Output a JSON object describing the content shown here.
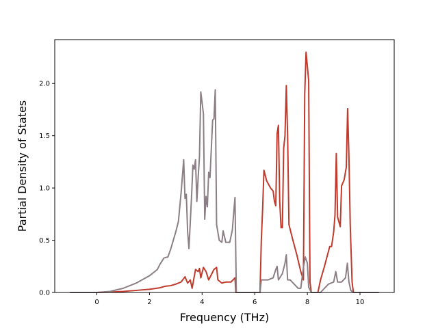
{
  "chart_data": {
    "type": "line",
    "title": "",
    "xlabel": "Frequency (THz)",
    "ylabel": "Partial Density of States",
    "xlim": [
      -1.6,
      11.3
    ],
    "ylim": [
      0.0,
      2.42
    ],
    "xticks": [
      0,
      2,
      4,
      6,
      8,
      10
    ],
    "yticks": [
      0.0,
      0.5,
      1.0,
      1.5,
      2.0
    ],
    "xtick_labels": [
      "0",
      "2",
      "4",
      "6",
      "8",
      "10"
    ],
    "ytick_labels": [
      "0.0",
      "0.5",
      "1.0",
      "1.5",
      "2.0"
    ],
    "grid": false,
    "legend": "none",
    "series": [
      {
        "color": "#c0392b",
        "points": [
          [
            -1.0,
            0.0
          ],
          [
            0.0,
            0.0
          ],
          [
            0.5,
            0.003
          ],
          [
            1.0,
            0.01
          ],
          [
            1.5,
            0.02
          ],
          [
            2.0,
            0.03
          ],
          [
            2.4,
            0.045
          ],
          [
            2.6,
            0.06
          ],
          [
            2.8,
            0.065
          ],
          [
            3.0,
            0.08
          ],
          [
            3.2,
            0.1
          ],
          [
            3.35,
            0.15
          ],
          [
            3.45,
            0.09
          ],
          [
            3.55,
            0.12
          ],
          [
            3.62,
            0.04
          ],
          [
            3.75,
            0.22
          ],
          [
            3.85,
            0.2
          ],
          [
            3.9,
            0.23
          ],
          [
            3.95,
            0.14
          ],
          [
            4.05,
            0.24
          ],
          [
            4.15,
            0.2
          ],
          [
            4.25,
            0.12
          ],
          [
            4.35,
            0.17
          ],
          [
            4.45,
            0.22
          ],
          [
            4.55,
            0.24
          ],
          [
            4.6,
            0.12
          ],
          [
            4.75,
            0.09
          ],
          [
            4.9,
            0.1
          ],
          [
            5.1,
            0.1
          ],
          [
            5.25,
            0.14
          ],
          [
            5.28,
            0.0
          ],
          [
            6.2,
            0.0
          ],
          [
            6.25,
            0.5
          ],
          [
            6.3,
            0.8
          ],
          [
            6.35,
            1.17
          ],
          [
            6.45,
            1.07
          ],
          [
            6.6,
            1.0
          ],
          [
            6.7,
            0.97
          ],
          [
            6.75,
            0.87
          ],
          [
            6.8,
            0.83
          ],
          [
            6.85,
            1.52
          ],
          [
            6.9,
            1.6
          ],
          [
            6.95,
            0.87
          ],
          [
            7.0,
            0.62
          ],
          [
            7.05,
            0.62
          ],
          [
            7.1,
            1.38
          ],
          [
            7.15,
            1.5
          ],
          [
            7.2,
            1.98
          ],
          [
            7.25,
            1.5
          ],
          [
            7.3,
            0.65
          ],
          [
            7.45,
            0.5
          ],
          [
            7.6,
            0.36
          ],
          [
            7.75,
            0.2
          ],
          [
            7.85,
            0.12
          ],
          [
            7.9,
            1.9
          ],
          [
            7.95,
            2.3
          ],
          [
            8.05,
            2.03
          ],
          [
            8.1,
            0.1
          ],
          [
            8.15,
            0.0
          ],
          [
            8.4,
            0.0
          ],
          [
            8.5,
            0.12
          ],
          [
            8.65,
            0.25
          ],
          [
            8.85,
            0.44
          ],
          [
            8.92,
            0.44
          ],
          [
            9.0,
            0.58
          ],
          [
            9.05,
            0.74
          ],
          [
            9.1,
            1.33
          ],
          [
            9.15,
            0.72
          ],
          [
            9.25,
            0.63
          ],
          [
            9.3,
            1.02
          ],
          [
            9.4,
            1.08
          ],
          [
            9.48,
            1.2
          ],
          [
            9.53,
            1.76
          ],
          [
            9.58,
            1.3
          ],
          [
            9.63,
            0.64
          ],
          [
            9.7,
            0.1
          ],
          [
            9.75,
            0.0
          ],
          [
            10.7,
            0.0
          ]
        ]
      },
      {
        "color": "#8c7e85",
        "points": [
          [
            -1.0,
            0.0
          ],
          [
            0.0,
            0.0
          ],
          [
            0.5,
            0.01
          ],
          [
            1.0,
            0.04
          ],
          [
            1.5,
            0.09
          ],
          [
            2.0,
            0.16
          ],
          [
            2.3,
            0.22
          ],
          [
            2.4,
            0.27
          ],
          [
            2.55,
            0.33
          ],
          [
            2.7,
            0.34
          ],
          [
            2.8,
            0.41
          ],
          [
            3.0,
            0.58
          ],
          [
            3.1,
            0.68
          ],
          [
            3.2,
            0.95
          ],
          [
            3.3,
            1.27
          ],
          [
            3.35,
            0.9
          ],
          [
            3.4,
            0.94
          ],
          [
            3.45,
            0.58
          ],
          [
            3.5,
            0.42
          ],
          [
            3.6,
            0.92
          ],
          [
            3.65,
            1.22
          ],
          [
            3.7,
            1.18
          ],
          [
            3.75,
            1.27
          ],
          [
            3.8,
            0.87
          ],
          [
            3.85,
            1.1
          ],
          [
            3.9,
            1.3
          ],
          [
            3.95,
            1.92
          ],
          [
            4.05,
            1.71
          ],
          [
            4.1,
            0.7
          ],
          [
            4.15,
            0.92
          ],
          [
            4.2,
            0.82
          ],
          [
            4.25,
            1.15
          ],
          [
            4.3,
            1.1
          ],
          [
            4.4,
            1.65
          ],
          [
            4.45,
            1.66
          ],
          [
            4.5,
            1.94
          ],
          [
            4.55,
            0.65
          ],
          [
            4.65,
            0.5
          ],
          [
            4.75,
            0.48
          ],
          [
            4.8,
            0.59
          ],
          [
            4.9,
            0.48
          ],
          [
            5.05,
            0.48
          ],
          [
            5.15,
            0.6
          ],
          [
            5.2,
            0.76
          ],
          [
            5.25,
            0.91
          ],
          [
            5.3,
            0.0
          ],
          [
            6.2,
            0.0
          ],
          [
            6.25,
            0.12
          ],
          [
            6.5,
            0.12
          ],
          [
            6.7,
            0.14
          ],
          [
            6.8,
            0.22
          ],
          [
            6.85,
            0.25
          ],
          [
            6.9,
            0.12
          ],
          [
            6.95,
            0.14
          ],
          [
            7.05,
            0.18
          ],
          [
            7.15,
            0.28
          ],
          [
            7.2,
            0.36
          ],
          [
            7.25,
            0.12
          ],
          [
            7.35,
            0.12
          ],
          [
            7.5,
            0.08
          ],
          [
            7.65,
            0.04
          ],
          [
            7.75,
            0.04
          ],
          [
            7.85,
            0.24
          ],
          [
            7.92,
            0.34
          ],
          [
            8.0,
            0.28
          ],
          [
            8.05,
            0.05
          ],
          [
            8.15,
            0.0
          ],
          [
            8.5,
            0.0
          ],
          [
            8.8,
            0.08
          ],
          [
            9.0,
            0.1
          ],
          [
            9.08,
            0.2
          ],
          [
            9.15,
            0.1
          ],
          [
            9.3,
            0.1
          ],
          [
            9.45,
            0.14
          ],
          [
            9.52,
            0.28
          ],
          [
            9.58,
            0.1
          ],
          [
            9.65,
            0.02
          ],
          [
            9.75,
            0.0
          ],
          [
            10.7,
            0.0
          ]
        ]
      }
    ]
  }
}
